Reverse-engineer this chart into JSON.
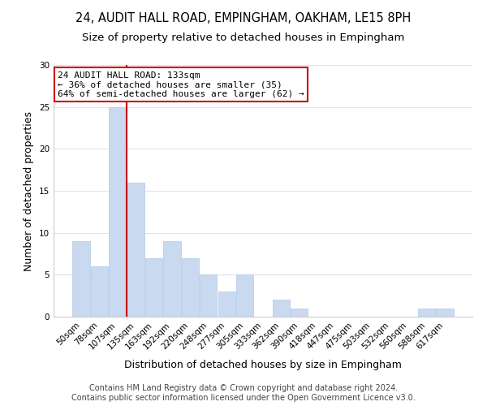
{
  "title": "24, AUDIT HALL ROAD, EMPINGHAM, OAKHAM, LE15 8PH",
  "subtitle": "Size of property relative to detached houses in Empingham",
  "xlabel": "Distribution of detached houses by size in Empingham",
  "ylabel": "Number of detached properties",
  "bar_color": "#c9d9f0",
  "bar_edge_color": "#b8cfe8",
  "categories": [
    "50sqm",
    "78sqm",
    "107sqm",
    "135sqm",
    "163sqm",
    "192sqm",
    "220sqm",
    "248sqm",
    "277sqm",
    "305sqm",
    "333sqm",
    "362sqm",
    "390sqm",
    "418sqm",
    "447sqm",
    "475sqm",
    "503sqm",
    "532sqm",
    "560sqm",
    "588sqm",
    "617sqm"
  ],
  "values": [
    9,
    6,
    25,
    16,
    7,
    9,
    7,
    5,
    3,
    5,
    0,
    2,
    1,
    0,
    0,
    0,
    0,
    0,
    0,
    1,
    1
  ],
  "ylim": [
    0,
    30
  ],
  "yticks": [
    0,
    5,
    10,
    15,
    20,
    25,
    30
  ],
  "subject_line_color": "#cc0000",
  "annotation_title": "24 AUDIT HALL ROAD: 133sqm",
  "annotation_line1": "← 36% of detached houses are smaller (35)",
  "annotation_line2": "64% of semi-detached houses are larger (62) →",
  "annotation_box_color": "#ffffff",
  "annotation_box_edge": "#cc0000",
  "footer1": "Contains HM Land Registry data © Crown copyright and database right 2024.",
  "footer2": "Contains public sector information licensed under the Open Government Licence v3.0.",
  "background_color": "#ffffff",
  "grid_color": "#dde6f0",
  "title_fontsize": 10.5,
  "subtitle_fontsize": 9.5,
  "axis_label_fontsize": 9,
  "tick_fontsize": 7.5,
  "annotation_fontsize": 8,
  "footer_fontsize": 7
}
